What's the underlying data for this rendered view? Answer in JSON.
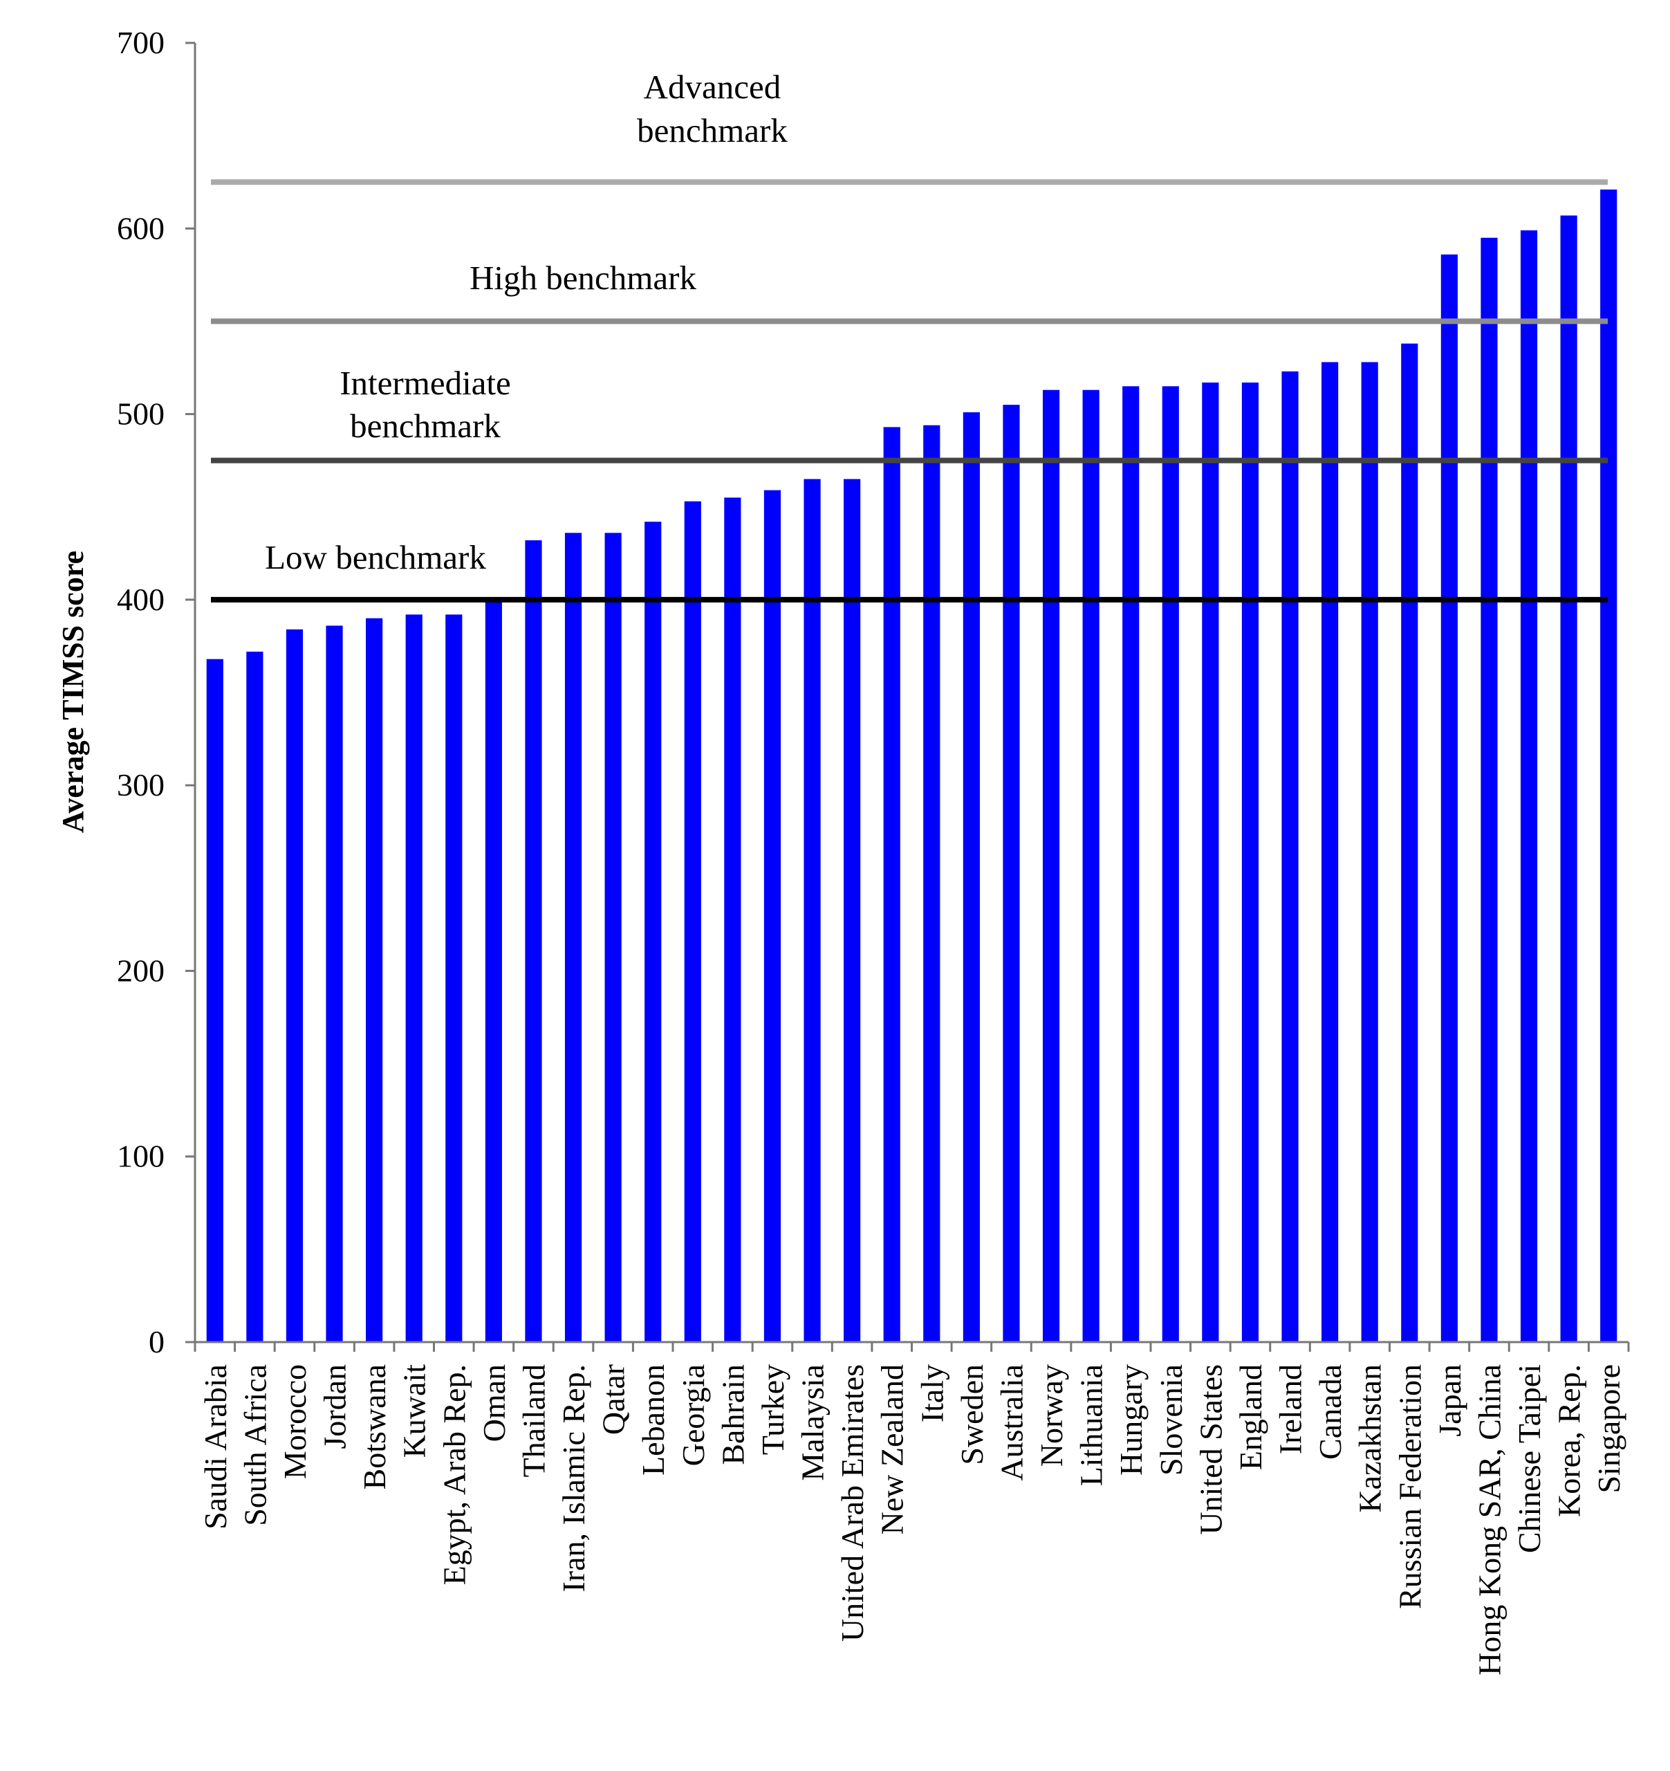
{
  "chart_data": {
    "type": "bar",
    "ylabel": "Average TIMSS score",
    "ylim": [
      0,
      700
    ],
    "yticks": [
      0,
      100,
      200,
      300,
      400,
      500,
      600,
      700
    ],
    "grid": false,
    "bar_color": "#0000ff",
    "categories": [
      "Saudi Arabia",
      "South Africa",
      "Morocco",
      "Jordan",
      "Botswana",
      "Kuwait",
      "Egypt, Arab Rep.",
      "Oman",
      "Thailand",
      "Iran, Islamic Rep.",
      "Qatar",
      "Lebanon",
      "Georgia",
      "Bahrain",
      "Turkey",
      "Malaysia",
      "United Arab Emirates",
      "New Zealand",
      "Italy",
      "Sweden",
      "Australia",
      "Norway",
      "Lithuania",
      "Hungary",
      "Slovenia",
      "United States",
      "England",
      "Ireland",
      "Canada",
      "Kazakhstan",
      "Russian Federation",
      "Japan",
      "Hong Kong SAR, China",
      "Chinese Taipei",
      "Korea, Rep.",
      "Singapore"
    ],
    "values": [
      368,
      372,
      384,
      386,
      390,
      392,
      392,
      400,
      432,
      436,
      436,
      442,
      453,
      455,
      459,
      465,
      465,
      493,
      494,
      501,
      505,
      513,
      513,
      515,
      515,
      517,
      517,
      523,
      528,
      528,
      538,
      586,
      595,
      599,
      607,
      621
    ],
    "benchmarks": [
      {
        "name": "Advanced benchmark",
        "lines": [
          "Advanced",
          "benchmark"
        ],
        "value": 625,
        "color": "#aaaaaa"
      },
      {
        "name": "High benchmark",
        "lines": [
          "High benchmark"
        ],
        "value": 550,
        "color": "#8c8c8c"
      },
      {
        "name": "Intermediate benchmark",
        "lines": [
          "Intermediate",
          "benchmark"
        ],
        "value": 475,
        "color": "#444444"
      },
      {
        "name": "Low benchmark",
        "lines": [
          "Low benchmark"
        ],
        "value": 400,
        "color": "#000000"
      }
    ]
  }
}
